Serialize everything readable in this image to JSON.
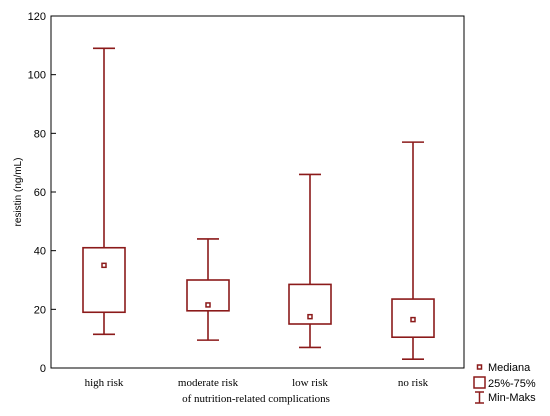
{
  "chart_data": {
    "type": "boxplot",
    "categories": [
      "high risk",
      "moderate risk",
      "low risk",
      "no risk"
    ],
    "xlabel": "of nutrition-related complications",
    "ylabel": "resistin (ng/mL)",
    "ylim": [
      0,
      120
    ],
    "yticks": [
      0,
      20,
      40,
      60,
      80,
      100,
      120
    ],
    "series": [
      {
        "category": "high risk",
        "min": 11.5,
        "q1": 19,
        "median": 35,
        "q3": 41,
        "max": 109
      },
      {
        "category": "moderate risk",
        "min": 9.5,
        "q1": 19.5,
        "median": 21.5,
        "q3": 30,
        "max": 44
      },
      {
        "category": "low risk",
        "min": 7,
        "q1": 15,
        "median": 17.5,
        "q3": 28.5,
        "max": 66
      },
      {
        "category": "no risk",
        "min": 3,
        "q1": 10.5,
        "median": 16.5,
        "q3": 23.5,
        "max": 77
      }
    ],
    "legend": {
      "position": "bottom-right",
      "items": [
        "Mediana",
        "25%-75%",
        "Min-Maks"
      ]
    },
    "colors": {
      "box": "#8b1a1a"
    },
    "grid": false
  }
}
